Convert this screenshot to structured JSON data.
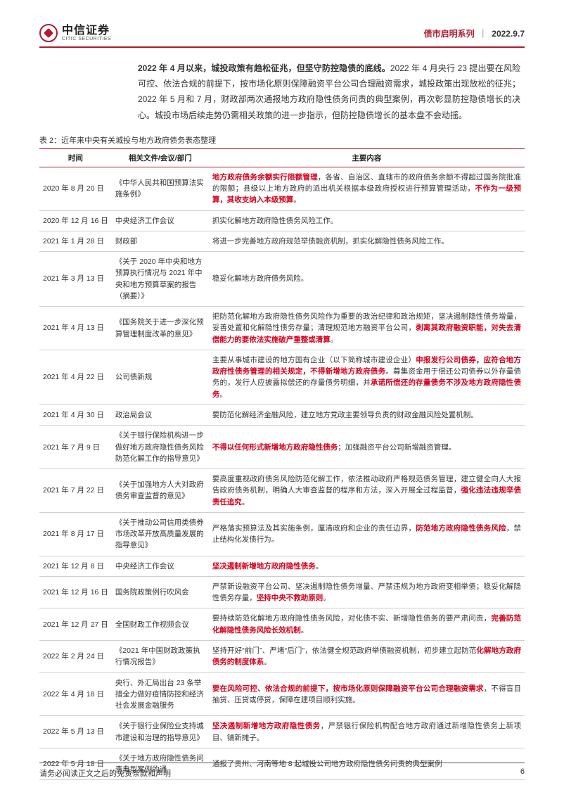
{
  "header": {
    "logo_cn": "中信证券",
    "logo_en": "CITIC SECURITIES",
    "series": "债市启明系列",
    "date": "2022.9.7"
  },
  "lead": {
    "bold": "2022 年 4 月以来，城投政策有趋松征兆，但坚守防控隐债的底线。",
    "rest": "2022 年 4 月央行 23 提出要在风险可控、依法合规的前提下，按市场化原则保障融资平台公司合理融资需求，城投政策出现放松的征兆；2022 年 5 月和 7 月，财政部两次通报地方政府隐性债务问责的典型案例，再次彰显防控隐债增长的决心。城投市场后续走势仍需相关政策的进一步指示，但防控隐债增长的基本盘不会动摇。"
  },
  "table": {
    "caption": "表 2：近年来中央有关城投与地方政府债务表态整理",
    "cols": [
      "时间",
      "相关文件/会议/部门",
      "主要内容"
    ],
    "rows": [
      {
        "date": "2020 年 8 月 20 日",
        "doc": "《中华人民共和国预算法实施条例》",
        "content": [
          {
            "t": "地方政府债务余额实行限额管理",
            "r": 1,
            "b": 1
          },
          {
            "t": "，各省、自治区、直辖市的政府债务余额不得超过国务院批准的限额；县级以上地方政府的派出机关根据本级政府授权进行预算管理活动，"
          },
          {
            "t": "不作为一级预算，其收支纳入本级预算",
            "r": 1,
            "b": 1
          },
          {
            "t": "。"
          }
        ]
      },
      {
        "date": "2020 年 12 月 16 日",
        "doc": "中央经济工作会议",
        "content": [
          {
            "t": "抓实化解地方政府隐性债务风险工作。"
          }
        ]
      },
      {
        "date": "2021 年 1 月 28 日",
        "doc": "财政部",
        "content": [
          {
            "t": "将进一步完善地方政府规范举债融资机制，抓实化解隐性债务风险工作。"
          }
        ]
      },
      {
        "date": "2021 年 3 月 13 日",
        "doc": "《关于 2020 年中央和地方预算执行情况与 2021 年中央和地方预算草案的报告（摘要）》",
        "content": [
          {
            "t": "稳妥化解地方政府债务风险。"
          }
        ]
      },
      {
        "date": "2021 年 4 月 13 日",
        "doc": "《国务院关于进一步深化预算管理制度改革的意见》",
        "content": [
          {
            "t": "把防范化解地方政府隐性债务风险作为重要的政治纪律和政治规矩，坚决遏制隐性债务增量，妥善处置和化解隐性债务存量；清理规范地方融资平台公司，"
          },
          {
            "t": "剥离其政府融资职能，对失去清偿能力的要依法实施破产重整或清算",
            "r": 1,
            "b": 1
          },
          {
            "t": "。"
          }
        ]
      },
      {
        "date": "2021 年 4 月 22 日",
        "doc": "公司债新规",
        "content": [
          {
            "t": "主要从事城市建设的地方国有企业（以下简称城市建设企业）"
          },
          {
            "t": "申报发行公司债券，应符合地方政府性债务管理的相关规定，不得新增地方政府债务",
            "r": 1,
            "b": 1
          },
          {
            "t": "。募集资金用于偿还公司债券以外存量债务的，发行人应披露拟偿还的存量债务明细，并"
          },
          {
            "t": "承诺所偿还的存量债务不涉及地方政府隐性债务",
            "r": 1,
            "b": 1
          },
          {
            "t": "。"
          }
        ]
      },
      {
        "date": "2021 年 4 月 30 日",
        "doc": "政治局会议",
        "content": [
          {
            "t": "要防范化解经济金融风险，建立地方党政主要领导负责的财政金融风险处置机制。"
          }
        ]
      },
      {
        "date": "2021 年 7 月 9 日",
        "doc": "《关于银行保险机构进一步做好地方政府隐性债务风险防范化解工作的指导意见》",
        "content": [
          {
            "t": "不得以任何形式新增地方政府隐性债务",
            "r": 1,
            "b": 1
          },
          {
            "t": "；加强融资平台公司新增融资管理。"
          }
        ]
      },
      {
        "date": "2021 年 7 月 22 日",
        "doc": "《关于加强地方人大对政府债务审查监督的意见》",
        "content": [
          {
            "t": "要高度重视政府债务风险防范化解工作，依法推动政府严格规范债务管理，建立健全向人大报告政府债务机制，明确人大审查监督的程序和方法，深入开展全过程监督，"
          },
          {
            "t": "强化违法违规举债责任追究",
            "r": 1,
            "b": 1
          },
          {
            "t": "。"
          }
        ]
      },
      {
        "date": "2021 年 8 月 17 日",
        "doc": "《关于推动公司信用类债券市场改革开放高质量发展的指导意见》",
        "content": [
          {
            "t": "严格落实预算法及其实施条例，厘清政府和企业的责任边界，"
          },
          {
            "t": "防范地方政府隐性债务风险",
            "r": 1,
            "b": 1
          },
          {
            "t": "，禁止结构化发债行为。"
          }
        ]
      },
      {
        "date": "2021 年 12 月 8 日",
        "doc": "中央经济工作会议",
        "content": [
          {
            "t": "坚决遏制新增地方政府隐性债务",
            "r": 1,
            "b": 1
          },
          {
            "t": "。"
          }
        ]
      },
      {
        "date": "2021 年 12 月 16 日",
        "doc": "国务院政策例行吹风会",
        "content": [
          {
            "t": "严禁新设融资平台公司、坚决遏制隐性债务增量、严禁违规为地方政府变相举债；稳妥化解隐性债务存量，"
          },
          {
            "t": "坚持中央不救助原则",
            "r": 1,
            "b": 1
          },
          {
            "t": "。"
          }
        ]
      },
      {
        "date": "2021 年 12 月 27 日",
        "doc": "全国财政工作视频会议",
        "content": [
          {
            "t": "要持续防范化解地方政府隐性债务风险，对化债不实、新增隐性债务的要严肃问责，"
          },
          {
            "t": "完善防范化解隐性债务风险长效机制",
            "r": 1,
            "b": 1
          },
          {
            "t": "。"
          }
        ]
      },
      {
        "date": "2022 年 2 月 24 日",
        "doc": "《2021 年中国财政政策执行情况报告》",
        "content": [
          {
            "t": "坚持开好“前门”、严堵“后门”，依法健全规范政府举债融资机制，初步建立起防范"
          },
          {
            "t": "化解地方政府债务的制度体系",
            "r": 1,
            "b": 1
          },
          {
            "t": "。"
          }
        ]
      },
      {
        "date": "2022 年 4 月 18 日",
        "doc": "央行、外汇局出台 23 条举措全力做好疫情防控和经济社会发展金融服务",
        "content": [
          {
            "t": "要在风险可控、依法合规的前提下，按市场化原则保障融资平台公司合理融资需求",
            "r": 1,
            "b": 1
          },
          {
            "t": "，不得盲目抽贷、压贷或停贷，保障在建项目顺利实施。"
          }
        ]
      },
      {
        "date": "2022 年 5 月 13 日",
        "doc": "《关于银行业保险业支持城市建设和治理的指导意见》",
        "content": [
          {
            "t": "坚决遏制新增地方政府隐性债务",
            "r": 1,
            "b": 1
          },
          {
            "t": "，严禁银行保险机构配合地方政府通过新增隐性债务上新项目、铺新摊子。"
          }
        ]
      },
      {
        "date": "2022 年 5 月 18 日",
        "doc": "《关于地方政府隐性债务问责典型案例的通",
        "content": [
          {
            "t": "通报了贵州、河南等地 8 起城投公司地方政府隐性债务问责的典型案例"
          }
        ]
      }
    ]
  },
  "footer": {
    "disclaimer": "请务必阅读正文之后的免责条款和声明",
    "page": "6"
  }
}
